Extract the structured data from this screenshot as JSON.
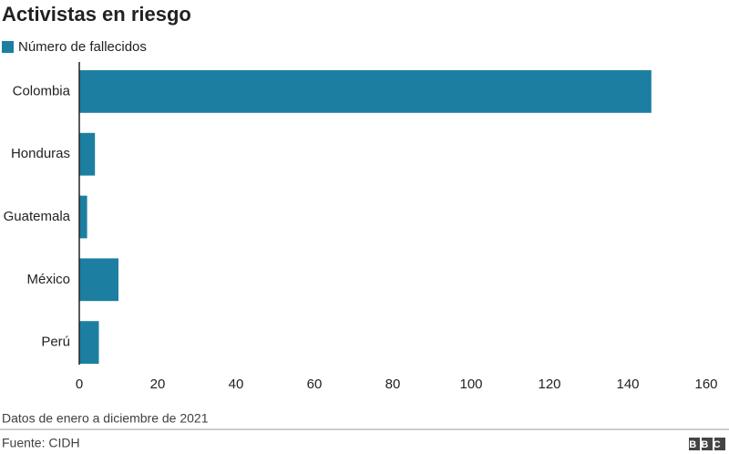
{
  "chart_data": {
    "type": "hbar",
    "title": "Activistas en riesgo",
    "categories": [
      "Colombia",
      "Honduras",
      "Guatemala",
      "México",
      "Perú"
    ],
    "series": [
      {
        "name": "Número de fallecidos",
        "color": "#1c7fa1",
        "values": [
          146,
          4,
          2,
          10,
          5
        ]
      }
    ],
    "xlim": [
      0,
      160
    ],
    "xticks": [
      0,
      20,
      40,
      60,
      80,
      100,
      120,
      140,
      160
    ],
    "grid": false,
    "legend": "top-left",
    "note": "Datos de enero a diciembre de 2021",
    "source": "Fuente: CIDH",
    "logo": "BBC"
  }
}
